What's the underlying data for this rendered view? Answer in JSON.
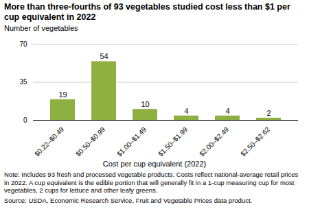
{
  "chart_data": {
    "type": "bar",
    "title": "More than three-fourths of 93 vegetables studied cost less than $1 per cup equivalent in 2022",
    "ylabel": "Number of vegetables",
    "xlabel": "Cost per cup equivalent (2022)",
    "categories": [
      "$0.22–$0.49",
      "$0.50–$0.99",
      "$1.00–$1.49",
      "$1.50–$1.99",
      "$2.00–$2.49",
      "$2.50–$2.62"
    ],
    "values": [
      19,
      54,
      10,
      4,
      4,
      2
    ],
    "color": "#8db040",
    "ylim": [
      0,
      70
    ],
    "yticks": [
      0,
      35,
      70
    ],
    "grid": true,
    "data_labels": true,
    "note": "Note: Includes 93 fresh and processed vegetable products. Costs reflect national-average retail prices in 2022. A cup equivalent is the edible portion that will generally fit in a 1-cup measuring cup for most vegetables, 2 cups for lettuce and other leafy greens.",
    "source": "Source: USDA, Economic Research Service, Fruit and Vegetable Prices data product."
  }
}
